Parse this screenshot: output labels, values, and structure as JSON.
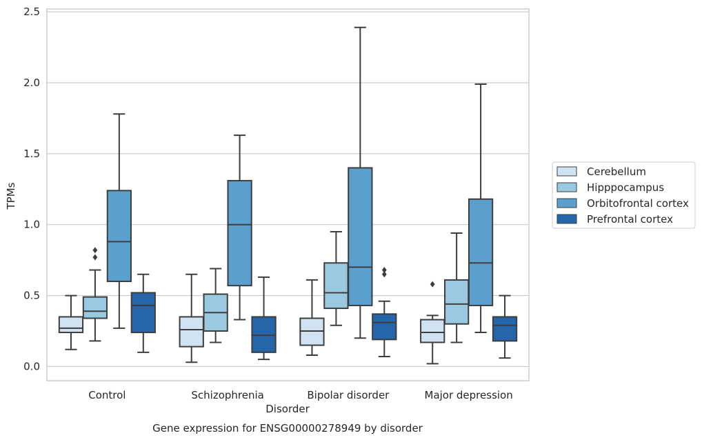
{
  "chart_data": {
    "type": "box",
    "xlabel": "Disorder",
    "ylabel": "TPMs",
    "caption": "Gene expression for ENSG00000278949 by disorder",
    "ylim": [
      -0.1,
      2.52
    ],
    "yticks": [
      0.0,
      0.5,
      1.0,
      1.5,
      2.0,
      2.5
    ],
    "ytick_labels": [
      "0.0",
      "0.5",
      "1.0",
      "1.5",
      "2.0",
      "2.5"
    ],
    "grid": "horizontal",
    "legend_position": "right",
    "categories": [
      "Control",
      "Schizophrenia",
      "Bipolar disorder",
      "Major depression"
    ],
    "series": [
      {
        "name": "Cerebellum",
        "color": "#d1e2f2",
        "boxes": [
          {
            "whisker_low": 0.12,
            "q1": 0.24,
            "median": 0.27,
            "q3": 0.35,
            "whisker_high": 0.5,
            "outliers": []
          },
          {
            "whisker_low": 0.03,
            "q1": 0.14,
            "median": 0.26,
            "q3": 0.35,
            "whisker_high": 0.65,
            "outliers": []
          },
          {
            "whisker_low": 0.08,
            "q1": 0.15,
            "median": 0.25,
            "q3": 0.34,
            "whisker_high": 0.61,
            "outliers": []
          },
          {
            "whisker_low": 0.02,
            "q1": 0.17,
            "median": 0.24,
            "q3": 0.33,
            "whisker_high": 0.36,
            "outliers": [
              0.58
            ]
          }
        ]
      },
      {
        "name": "Hipppocampus",
        "color": "#9ac8e0",
        "boxes": [
          {
            "whisker_low": 0.18,
            "q1": 0.34,
            "median": 0.39,
            "q3": 0.49,
            "whisker_high": 0.68,
            "outliers": [
              0.77,
              0.82
            ]
          },
          {
            "whisker_low": 0.17,
            "q1": 0.25,
            "median": 0.38,
            "q3": 0.51,
            "whisker_high": 0.69,
            "outliers": []
          },
          {
            "whisker_low": 0.29,
            "q1": 0.41,
            "median": 0.52,
            "q3": 0.73,
            "whisker_high": 0.95,
            "outliers": []
          },
          {
            "whisker_low": 0.17,
            "q1": 0.3,
            "median": 0.44,
            "q3": 0.61,
            "whisker_high": 0.94,
            "outliers": []
          }
        ]
      },
      {
        "name": "Orbitofrontal cortex",
        "color": "#5a9fce",
        "boxes": [
          {
            "whisker_low": 0.27,
            "q1": 0.6,
            "median": 0.88,
            "q3": 1.24,
            "whisker_high": 1.78,
            "outliers": []
          },
          {
            "whisker_low": 0.33,
            "q1": 0.57,
            "median": 1.0,
            "q3": 1.31,
            "whisker_high": 1.63,
            "outliers": []
          },
          {
            "whisker_low": 0.2,
            "q1": 0.43,
            "median": 0.7,
            "q3": 1.4,
            "whisker_high": 2.39,
            "outliers": []
          },
          {
            "whisker_low": 0.24,
            "q1": 0.43,
            "median": 0.73,
            "q3": 1.18,
            "whisker_high": 1.99,
            "outliers": []
          }
        ]
      },
      {
        "name": "Prefrontal cortex",
        "color": "#2466a9",
        "boxes": [
          {
            "whisker_low": 0.1,
            "q1": 0.24,
            "median": 0.43,
            "q3": 0.52,
            "whisker_high": 0.65,
            "outliers": []
          },
          {
            "whisker_low": 0.05,
            "q1": 0.1,
            "median": 0.22,
            "q3": 0.35,
            "whisker_high": 0.63,
            "outliers": []
          },
          {
            "whisker_low": 0.07,
            "q1": 0.19,
            "median": 0.31,
            "q3": 0.37,
            "whisker_high": 0.46,
            "outliers": [
              0.65,
              0.68
            ]
          },
          {
            "whisker_low": 0.06,
            "q1": 0.18,
            "median": 0.29,
            "q3": 0.35,
            "whisker_high": 0.5,
            "outliers": []
          }
        ]
      }
    ]
  }
}
